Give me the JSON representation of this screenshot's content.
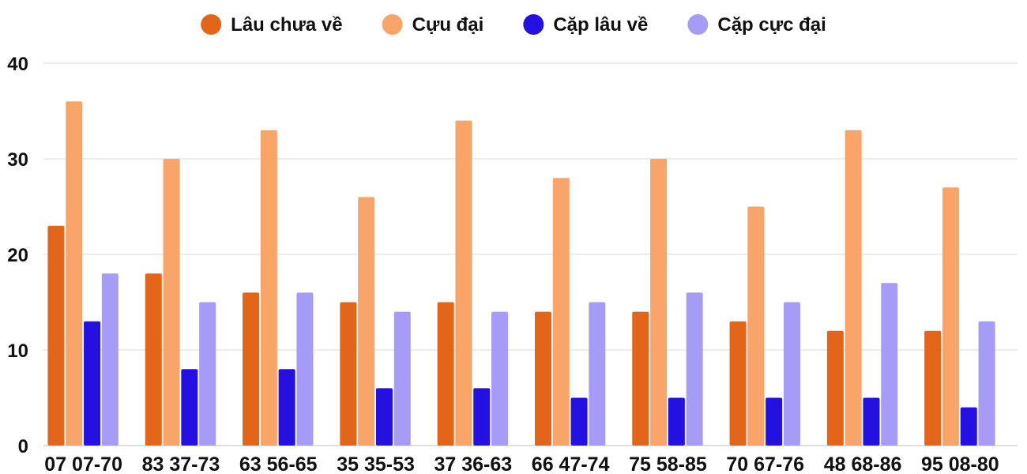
{
  "chart_data": {
    "type": "bar",
    "categories": [
      "07 07-70",
      "83 37-73",
      "63 56-65",
      "35 35-53",
      "37 36-63",
      "66 47-74",
      "75 58-85",
      "70 67-76",
      "48 68-86",
      "95 08-80"
    ],
    "series": [
      {
        "name": "Lâu chưa về",
        "color": "#e2651a",
        "values": [
          23,
          18,
          16,
          15,
          15,
          14,
          14,
          13,
          12,
          12
        ]
      },
      {
        "name": "Cựu đại",
        "color": "#f9a56a",
        "values": [
          36,
          30,
          33,
          26,
          34,
          28,
          30,
          25,
          33,
          27
        ]
      },
      {
        "name": "Cặp lâu về",
        "color": "#2410e0",
        "values": [
          13,
          8,
          8,
          6,
          6,
          5,
          5,
          5,
          5,
          4
        ]
      },
      {
        "name": "Cặp cực đại",
        "color": "#a69cf7",
        "values": [
          18,
          15,
          16,
          14,
          14,
          15,
          16,
          15,
          17,
          13
        ]
      }
    ],
    "yticks": [
      0,
      10,
      20,
      30,
      40
    ],
    "ylim": [
      0,
      40
    ],
    "grid": true,
    "legend_position": "top-center"
  }
}
